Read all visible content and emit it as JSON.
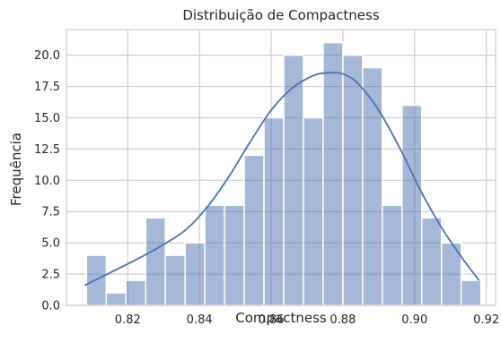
{
  "chart_data": {
    "type": "bar",
    "title": "Distribuição de Compactness",
    "xlabel": "Compactness",
    "ylabel": "Frequência",
    "xlim": [
      0.8029,
      0.9226
    ],
    "ylim": [
      0,
      22.05
    ],
    "grid": true,
    "bin_start": 0.8085,
    "bin_width": 0.0055,
    "counts": [
      4,
      1,
      2,
      7,
      4,
      5,
      8,
      8,
      12,
      15,
      20,
      15,
      21,
      20,
      19,
      8,
      16,
      7,
      5,
      2
    ],
    "xticks": [
      0.82,
      0.84,
      0.86,
      0.88,
      0.9,
      0.92
    ],
    "xtick_labels": [
      "0.82",
      "0.84",
      "0.86",
      "0.88",
      "0.90",
      "0.92"
    ],
    "yticks": [
      0,
      2.5,
      5,
      7.5,
      10,
      12.5,
      15,
      17.5,
      20
    ],
    "ytick_labels": [
      "0.0",
      "2.5",
      "5.0",
      "7.5",
      "10.0",
      "12.5",
      "15.0",
      "17.5",
      "20.0"
    ],
    "kde": {
      "x": [
        0.808,
        0.815,
        0.822,
        0.829,
        0.836,
        0.842,
        0.848,
        0.854,
        0.86,
        0.866,
        0.872,
        0.876,
        0.878,
        0.88,
        0.884,
        0.89,
        0.896,
        0.902,
        0.908,
        0.914,
        0.918
      ],
      "y": [
        1.6,
        2.6,
        3.6,
        4.7,
        6.0,
        7.8,
        10.2,
        13.0,
        15.6,
        17.4,
        18.4,
        18.6,
        18.6,
        18.5,
        17.8,
        15.6,
        12.5,
        9.0,
        6.0,
        3.5,
        2.0
      ]
    },
    "colors": {
      "bar_fill": "#4c72b0",
      "bar_opacity": 0.5,
      "line": "#4c72b0",
      "grid": "#cccccc",
      "spine": "#cccccc",
      "background": "#ffffff",
      "text": "#262626"
    }
  }
}
